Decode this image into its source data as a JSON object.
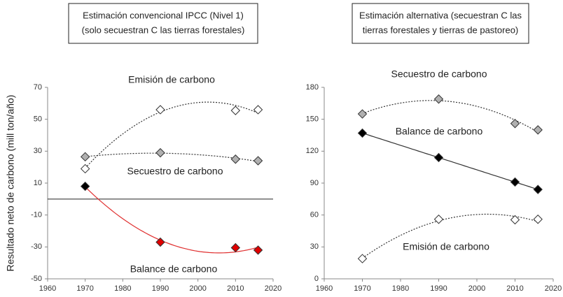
{
  "y_label": "Resultado neto  de carbono (mill ton/año)",
  "chart_data": [
    {
      "type": "line",
      "title_lines": [
        "Estimación convencional IPCC (Nivel 1)",
        "(solo secuestran C las tierras forestales)"
      ],
      "xlim": [
        1960,
        2020
      ],
      "xticks": [
        1960,
        1970,
        1980,
        1990,
        2000,
        2010,
        2020
      ],
      "ylim": [
        -50,
        70
      ],
      "yticks": [
        -50,
        -30,
        -10,
        10,
        30,
        50,
        70
      ],
      "zero_line": true,
      "series": [
        {
          "name": "Emisión de carbono",
          "color": "#ffffff",
          "trend": "quadratic",
          "line_color": "#333333",
          "line_style": "dotted",
          "x": [
            1970,
            1990,
            2010,
            2016
          ],
          "values": [
            19,
            56,
            55.5,
            56
          ]
        },
        {
          "name": "Secuestro de carbono",
          "color": "#b0b0b0",
          "trend": "quadratic",
          "line_color": "#333333",
          "line_style": "dotted",
          "x": [
            1970,
            1990,
            2010,
            2016
          ],
          "values": [
            26.5,
            29,
            25,
            24
          ]
        },
        {
          "name": "Balance de carbono",
          "color": "#e00000",
          "trend": "quadratic",
          "line_color": "#e03030",
          "line_style": "solid",
          "point_colors": [
            "#000000",
            "#e00000",
            "#e00000",
            "#e00000"
          ],
          "x": [
            1970,
            1990,
            2010,
            2016
          ],
          "values": [
            8,
            -27,
            -30.5,
            -32
          ]
        }
      ]
    },
    {
      "type": "line",
      "title_lines": [
        "Estimación alternativa (secuestran C las",
        "tierras  forestales y tierras de pastoreo)"
      ],
      "xlim": [
        1960,
        2020
      ],
      "xticks": [
        1960,
        1970,
        1980,
        1990,
        2000,
        2010,
        2020
      ],
      "ylim": [
        0,
        180
      ],
      "yticks": [
        0,
        30,
        60,
        90,
        120,
        150,
        180
      ],
      "zero_line": false,
      "series": [
        {
          "name": "Secuestro de carbono",
          "color": "#b0b0b0",
          "trend": "quadratic",
          "line_color": "#333333",
          "line_style": "dotted",
          "x": [
            1970,
            1990,
            2010,
            2016
          ],
          "values": [
            155,
            169,
            146,
            140
          ]
        },
        {
          "name": "Balance de carbono",
          "color": "#000000",
          "trend": "linear",
          "line_color": "#333333",
          "line_style": "solid",
          "x": [
            1970,
            1990,
            2010,
            2016
          ],
          "values": [
            137,
            114,
            91,
            84
          ]
        },
        {
          "name": "Emisión de carbono",
          "color": "#ffffff",
          "trend": "quadratic",
          "line_color": "#333333",
          "line_style": "dotted",
          "x": [
            1970,
            1990,
            2010,
            2016
          ],
          "values": [
            19,
            56,
            55.5,
            56
          ]
        }
      ]
    }
  ]
}
